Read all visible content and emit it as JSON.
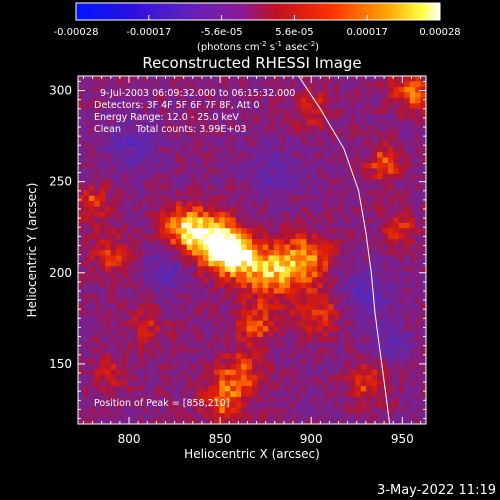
{
  "colorbar": {
    "ticks": [
      "-0.00028",
      "-0.00017",
      "-5.6e-05",
      "5.6e-05",
      "0.00017",
      "0.00028"
    ],
    "units_label": "(photons cm",
    "units_exp1": "-2",
    "units_mid": " s",
    "units_exp2": "-1",
    "units_mid2": " asec",
    "units_exp3": "-2",
    "units_end": ")"
  },
  "chart_data": {
    "type": "heatmap",
    "title": "Reconstructed RHESSI Image",
    "xlabel": "Heliocentric X (arcsec)",
    "ylabel": "Heliocentric Y (arcsec)",
    "xlim": [
      772,
      963
    ],
    "ylim": [
      117,
      308
    ],
    "x_ticks": [
      800,
      850,
      900,
      950
    ],
    "y_ticks": [
      150,
      200,
      250,
      300
    ],
    "value_range": [
      -0.00028,
      0.00028
    ],
    "colormap": "rainbow-like blue-purple-red-yellow-white",
    "blobs": [
      {
        "x": 858,
        "y": 210,
        "v": 1.0,
        "s": 9
      },
      {
        "x": 845,
        "y": 218,
        "v": 0.85,
        "s": 10
      },
      {
        "x": 830,
        "y": 225,
        "v": 0.65,
        "s": 9
      },
      {
        "x": 878,
        "y": 200,
        "v": 0.7,
        "s": 10
      },
      {
        "x": 897,
        "y": 208,
        "v": 0.65,
        "s": 10
      },
      {
        "x": 870,
        "y": 172,
        "v": 0.5,
        "s": 8
      },
      {
        "x": 860,
        "y": 143,
        "v": 0.55,
        "s": 9
      },
      {
        "x": 850,
        "y": 128,
        "v": 0.5,
        "s": 8
      },
      {
        "x": 904,
        "y": 178,
        "v": 0.45,
        "s": 9
      },
      {
        "x": 810,
        "y": 170,
        "v": 0.3,
        "s": 8
      },
      {
        "x": 790,
        "y": 210,
        "v": 0.4,
        "s": 8
      },
      {
        "x": 780,
        "y": 238,
        "v": 0.45,
        "s": 7
      },
      {
        "x": 955,
        "y": 300,
        "v": 0.6,
        "s": 8
      },
      {
        "x": 940,
        "y": 260,
        "v": 0.5,
        "s": 7
      },
      {
        "x": 948,
        "y": 225,
        "v": 0.4,
        "s": 7
      },
      {
        "x": 930,
        "y": 140,
        "v": 0.45,
        "s": 8
      },
      {
        "x": 790,
        "y": 145,
        "v": 0.3,
        "s": 7
      },
      {
        "x": 900,
        "y": 290,
        "v": 0.35,
        "s": 8
      },
      {
        "x": 800,
        "y": 270,
        "v": -0.35,
        "s": 10
      },
      {
        "x": 930,
        "y": 190,
        "v": -0.4,
        "s": 10
      },
      {
        "x": 820,
        "y": 200,
        "v": -0.35,
        "s": 9
      },
      {
        "x": 880,
        "y": 255,
        "v": -0.3,
        "s": 10
      },
      {
        "x": 945,
        "y": 160,
        "v": -0.3,
        "s": 8
      }
    ],
    "limb_curve": [
      [
        893,
        308
      ],
      [
        905,
        290
      ],
      [
        918,
        268
      ],
      [
        926,
        245
      ],
      [
        930,
        222
      ],
      [
        933,
        200
      ],
      [
        935,
        178
      ],
      [
        938,
        155
      ],
      [
        941,
        133
      ],
      [
        943,
        117
      ]
    ],
    "annotations": {
      "time": "9-Jul-2003 06:09:32.000 to 06:15:32.000",
      "detectors": "Detectors: 3F 4F 5F 6F 7F 8F, Att 0",
      "energy": "Energy Range: 12.0 - 25.0 keV",
      "clean": "Clean     Total counts: 3.99E+03",
      "peak": "Position of Peak = [858,210]"
    }
  },
  "footer": {
    "timestamp": "3-May-2022 11:19"
  }
}
